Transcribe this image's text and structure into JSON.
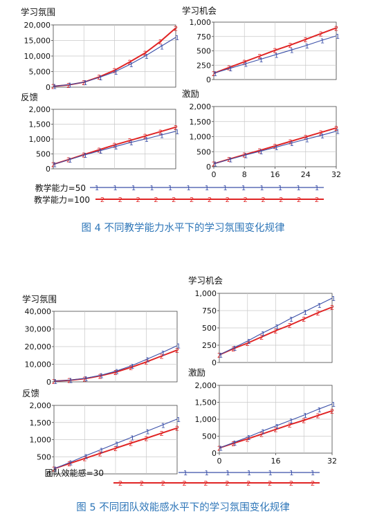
{
  "colors": {
    "series1": "#3a4fa8",
    "series2": "#e02424",
    "caption": "#2e76b8",
    "grid": "#c8c8c8"
  },
  "figure4": {
    "caption": "图 4 不同教学能力水平下的学习氛围变化规律",
    "legend": [
      "教学能力=50",
      "教学能力=100"
    ],
    "legend_markers": [
      "1",
      "2"
    ]
  },
  "figure5": {
    "caption": "图 5 不同团队效能感水平下的学习氛围变化规律",
    "legend": [
      "团队效能感=30",
      ""
    ],
    "legend_markers": [
      "1",
      "2"
    ]
  },
  "chart_data": [
    {
      "type": "line",
      "title": "学习氛围",
      "x": [
        0,
        4,
        8,
        12,
        16,
        20,
        24,
        28,
        32
      ],
      "xticks": [],
      "ylim": [
        0,
        20000
      ],
      "yticks": [
        "0",
        "5,000",
        "10,000",
        "15,000",
        "20,000"
      ],
      "series": [
        {
          "name": "教学能力=50",
          "marker": "1",
          "values": [
            300,
            800,
            1600,
            3100,
            4900,
            7300,
            10000,
            13000,
            16000
          ]
        },
        {
          "name": "教学能力=100",
          "marker": "2",
          "values": [
            300,
            700,
            1600,
            3300,
            5400,
            8100,
            11000,
            14700,
            19000
          ]
        }
      ]
    },
    {
      "type": "line",
      "title": "学习机会",
      "x": [
        0,
        4,
        8,
        12,
        16,
        20,
        24,
        28,
        32
      ],
      "xticks": [],
      "ylim": [
        0,
        1000
      ],
      "yticks": [
        "0",
        "250",
        "500",
        "750",
        "1,000"
      ],
      "series": [
        {
          "name": "教学能力=50",
          "marker": "1",
          "values": [
            110,
            190,
            270,
            350,
            430,
            510,
            590,
            680,
            760
          ]
        },
        {
          "name": "教学能力=100",
          "marker": "2",
          "values": [
            110,
            210,
            310,
            410,
            510,
            600,
            700,
            800,
            900
          ]
        }
      ]
    },
    {
      "type": "line",
      "title": "反馈",
      "x": [
        0,
        4,
        8,
        12,
        16,
        20,
        24,
        28,
        32
      ],
      "xticks": [],
      "ylim": [
        0,
        2000
      ],
      "yticks": [
        "0",
        "500",
        "1,000",
        "1,500",
        "2,000"
      ],
      "series": [
        {
          "name": "教学能力=50",
          "marker": "1",
          "values": [
            150,
            300,
            460,
            600,
            740,
            880,
            1000,
            1130,
            1260
          ]
        },
        {
          "name": "教学能力=100",
          "marker": "2",
          "values": [
            150,
            310,
            480,
            640,
            800,
            950,
            1100,
            1250,
            1400
          ]
        }
      ]
    },
    {
      "type": "line",
      "title": "激励",
      "x": [
        0,
        4,
        8,
        12,
        16,
        20,
        24,
        28,
        32
      ],
      "xticks": [
        "0",
        "8",
        "16",
        "24",
        "32"
      ],
      "ylim": [
        0,
        2000
      ],
      "yticks": [
        "0",
        "500",
        "1,000",
        "1,500",
        "2,000"
      ],
      "series": [
        {
          "name": "教学能力=50",
          "marker": "1",
          "values": [
            100,
            240,
            380,
            510,
            640,
            780,
            910,
            1040,
            1180
          ]
        },
        {
          "name": "教学能力=100",
          "marker": "2",
          "values": [
            100,
            250,
            400,
            540,
            690,
            840,
            990,
            1140,
            1290
          ]
        }
      ]
    },
    {
      "type": "line",
      "title": "学习氛围",
      "x": [
        0,
        4,
        8,
        12,
        16,
        20,
        24,
        28,
        32
      ],
      "xticks": [],
      "ylim": [
        0,
        40000
      ],
      "yticks": [
        "0",
        "10,000",
        "20,000",
        "30,000",
        "40,000"
      ],
      "series": [
        {
          "name": "团队效能感=30",
          "marker": "1",
          "values": [
            400,
            1000,
            2000,
            3700,
            6000,
            9000,
            12700,
            16500,
            20500
          ]
        },
        {
          "name": "",
          "marker": "2",
          "values": [
            400,
            900,
            1800,
            3400,
            5500,
            8200,
            11300,
            14700,
            18000
          ]
        }
      ]
    },
    {
      "type": "line",
      "title": "学习机会",
      "x": [
        0,
        4,
        8,
        12,
        16,
        20,
        24,
        28,
        32
      ],
      "xticks": [],
      "ylim": [
        0,
        1000
      ],
      "yticks": [
        "0",
        "250",
        "500",
        "750",
        "1,000"
      ],
      "series": [
        {
          "name": "团队效能感=30",
          "marker": "1",
          "values": [
            110,
            210,
            310,
            420,
            520,
            630,
            730,
            830,
            930
          ]
        },
        {
          "name": "",
          "marker": "2",
          "values": [
            110,
            200,
            280,
            370,
            460,
            540,
            630,
            720,
            800
          ]
        }
      ]
    },
    {
      "type": "line",
      "title": "反馈",
      "x": [
        0,
        4,
        8,
        12,
        16,
        20,
        24,
        28,
        32
      ],
      "xticks": [],
      "ylim": [
        0,
        2000
      ],
      "yticks": [
        "0",
        "500",
        "1,000",
        "1,500",
        "2,000"
      ],
      "series": [
        {
          "name": "团队效能感=30",
          "marker": "1",
          "values": [
            150,
            330,
            520,
            700,
            880,
            1060,
            1240,
            1420,
            1600
          ]
        },
        {
          "name": "",
          "marker": "2",
          "values": [
            150,
            300,
            450,
            600,
            750,
            900,
            1040,
            1190,
            1340
          ]
        }
      ]
    },
    {
      "type": "line",
      "title": "激励",
      "x": [
        0,
        4,
        8,
        12,
        16,
        20,
        24,
        28,
        32
      ],
      "xticks": [
        "0",
        "16",
        "32"
      ],
      "ylim": [
        0,
        2000
      ],
      "yticks": [
        "0",
        "500",
        "1,000",
        "1,500",
        "2,000"
      ],
      "series": [
        {
          "name": "团队效能感=30",
          "marker": "1",
          "values": [
            150,
            310,
            470,
            640,
            800,
            960,
            1120,
            1290,
            1450
          ]
        },
        {
          "name": "",
          "marker": "2",
          "values": [
            150,
            290,
            420,
            560,
            700,
            840,
            970,
            1110,
            1250
          ]
        }
      ]
    }
  ]
}
